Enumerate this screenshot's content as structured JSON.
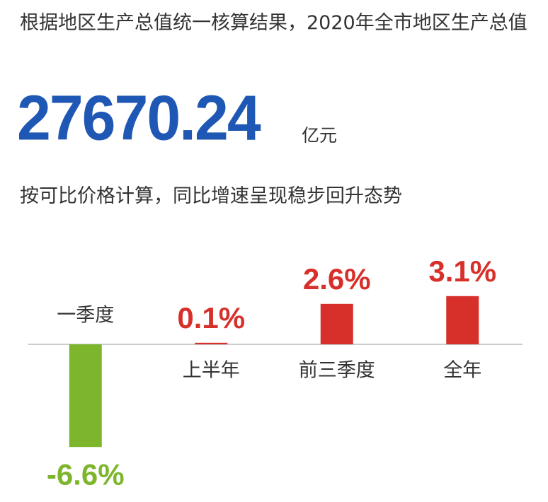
{
  "chart_data": {
    "type": "bar",
    "title": "根据地区生产总值统一核算结果，2020年全市地区生产总值",
    "headline_value": 27670.24,
    "headline_unit": "亿元",
    "subtitle": "按可比价格计算，同比增速呈现稳步回升态势",
    "categories": [
      "一季度",
      "上半年",
      "前三季度",
      "全年"
    ],
    "values": [
      -6.6,
      0.1,
      2.6,
      3.1
    ],
    "value_labels": [
      "-6.6%",
      "0.1%",
      "2.6%",
      "3.1%"
    ],
    "positive_color": "#d7302b",
    "negative_color": "#7db52c"
  }
}
